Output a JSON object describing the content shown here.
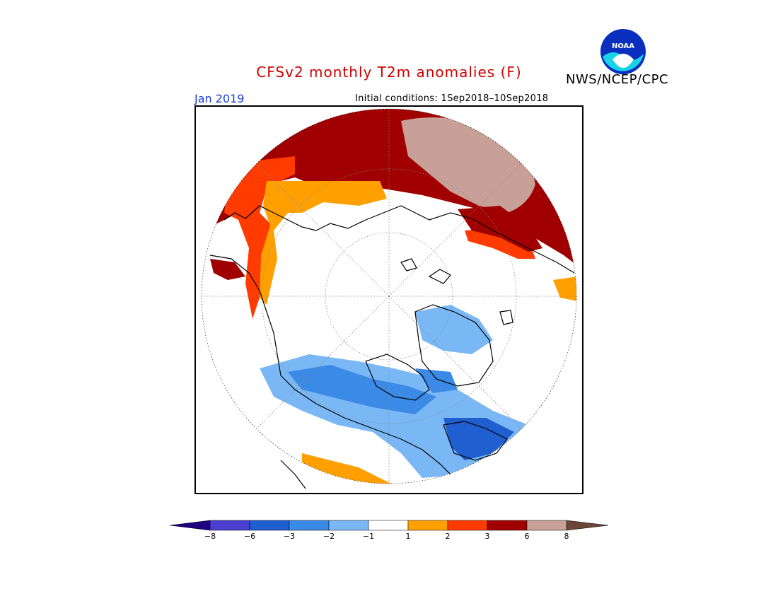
{
  "header": {
    "title": "CFSv2 monthly T2m anomalies (F)",
    "agency": "NWS/NCEP/CPC",
    "valid_month": "Jan 2019",
    "initial_conditions": "Initial conditions: 1Sep2018–10Sep2018",
    "logo_text": "NOAA"
  },
  "colors": {
    "title": "#d00000",
    "valid_month": "#1c3fd6",
    "lt_minus8": "#200080",
    "m8_m6": "#4a3fcf",
    "m6_m3": "#1f5fd0",
    "m3_m2": "#3a8ae6",
    "m2_m1": "#7ab8f5",
    "m1_p1": "#ffffff",
    "p1_p2": "#ffa000",
    "p2_p3": "#ff3b00",
    "p3_p6": "#a00000",
    "p6_p8": "#c9a097",
    "gt_p8": "#6b4535"
  },
  "legend": {
    "ticks": [
      "−8",
      "−6",
      "−3",
      "−2",
      "−1",
      "1",
      "2",
      "3",
      "6",
      "8"
    ]
  }
}
